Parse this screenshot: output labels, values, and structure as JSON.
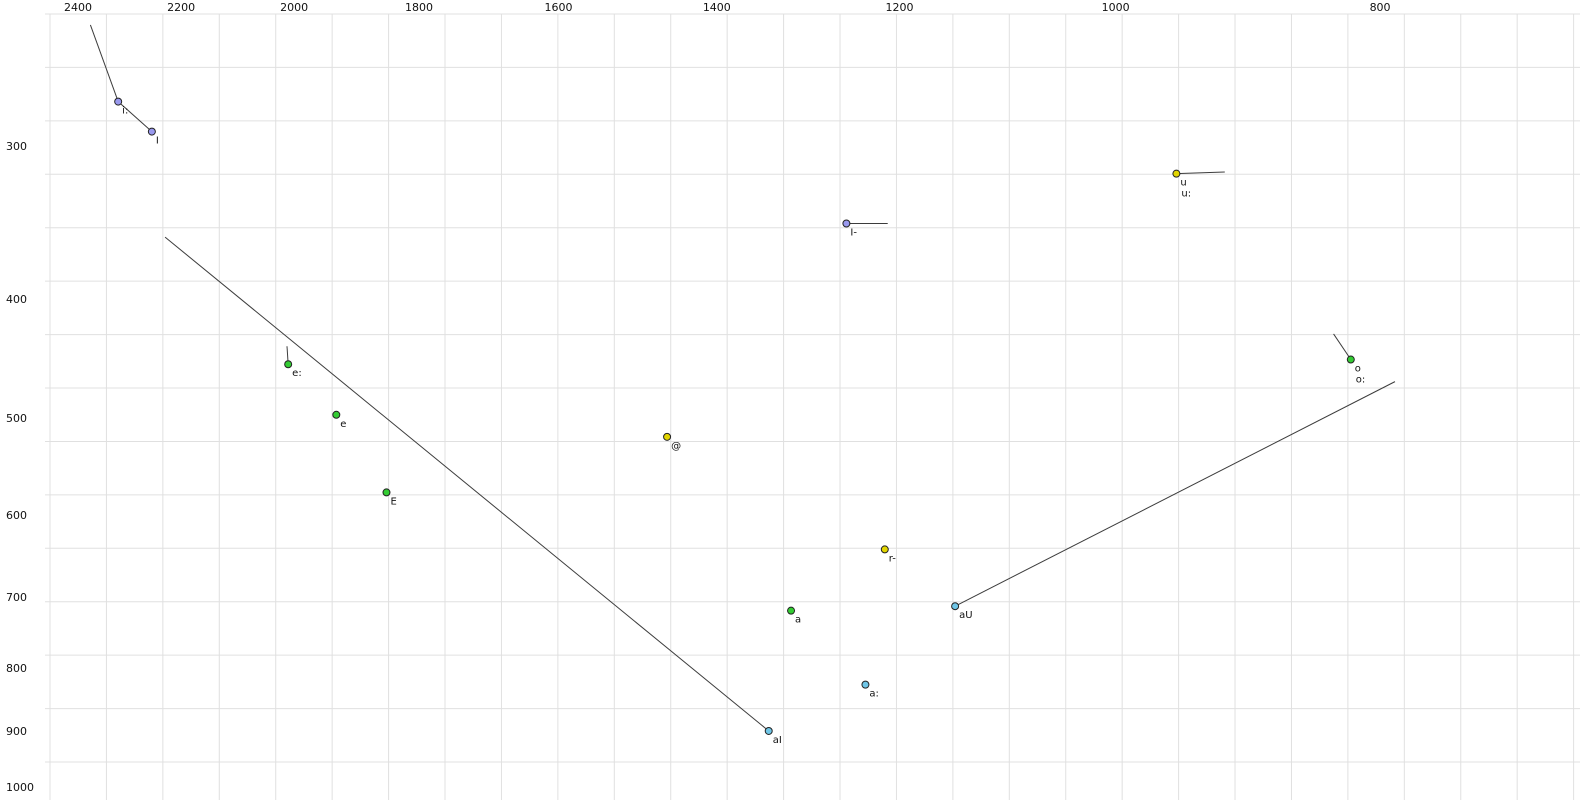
{
  "chart_data": {
    "type": "scatter",
    "title": "",
    "xlabel": "",
    "ylabel": "",
    "description": "vowel-formant-plot-f2-by-f1",
    "x_axis": {
      "scale": "log",
      "reversed": true,
      "ticks": [
        2400,
        2200,
        2000,
        1800,
        1600,
        1400,
        1200,
        1000,
        800
      ]
    },
    "y_axis": {
      "scale": "log",
      "reversed": true,
      "ticks": [
        300,
        400,
        500,
        600,
        700,
        800,
        900,
        1000
      ]
    },
    "points": [
      {
        "label": "i:",
        "f2": 2320,
        "f1": 276,
        "color": "#9999ee"
      },
      {
        "label": "I",
        "f2": 2255,
        "f1": 292,
        "color": "#9999ee"
      },
      {
        "label": "u",
        "label2": "u:",
        "f2": 950,
        "f1": 316,
        "color": "#e2d500"
      },
      {
        "label": "I-",
        "f2": 1255,
        "f1": 347,
        "color": "#9999ee"
      },
      {
        "label": "o",
        "label2": "o:",
        "f2": 820,
        "f1": 448,
        "color": "#33cc33"
      },
      {
        "label": "e:",
        "f2": 2010,
        "f1": 452,
        "color": "#33cc33"
      },
      {
        "label": "e",
        "f2": 1930,
        "f1": 497,
        "color": "#33cc33"
      },
      {
        "label": "@",
        "f2": 1460,
        "f1": 518,
        "color": "#e2d500"
      },
      {
        "label": "E",
        "f2": 1850,
        "f1": 575,
        "color": "#33cc33"
      },
      {
        "label": "r-",
        "f2": 1215,
        "f1": 640,
        "color": "#e2d500"
      },
      {
        "label": "a",
        "f2": 1315,
        "f1": 718,
        "color": "#33cc33"
      },
      {
        "label": "aU",
        "f2": 1145,
        "f1": 712,
        "color": "#6fc6e7"
      },
      {
        "label": "a:",
        "f2": 1235,
        "f1": 825,
        "color": "#6fc6e7"
      },
      {
        "label": "aI",
        "f2": 1340,
        "f1": 900,
        "color": "#6fc6e7"
      }
    ],
    "trajectories": [
      {
        "name": "i:-onglide",
        "from": {
          "f2": 2375,
          "f1": 239
        },
        "to": {
          "f2": 2320,
          "f1": 276
        }
      },
      {
        "name": "i:-to-I",
        "from": {
          "f2": 2320,
          "f1": 276
        },
        "to": {
          "f2": 2255,
          "f1": 292
        }
      },
      {
        "name": "u-offglide",
        "from": {
          "f2": 950,
          "f1": 316
        },
        "to": {
          "f2": 912,
          "f1": 315
        }
      },
      {
        "name": "I--offglide",
        "from": {
          "f2": 1255,
          "f1": 347
        },
        "to": {
          "f2": 1212,
          "f1": 347
        }
      },
      {
        "name": "o-onglide",
        "from": {
          "f2": 832,
          "f1": 427
        },
        "to": {
          "f2": 820,
          "f1": 448
        }
      },
      {
        "name": "e:-onglide",
        "from": {
          "f2": 2012,
          "f1": 437
        },
        "to": {
          "f2": 2010,
          "f1": 452
        }
      },
      {
        "name": "aI-glide",
        "from": {
          "f2": 2230,
          "f1": 356
        },
        "to": {
          "f2": 1340,
          "f1": 900
        }
      },
      {
        "name": "aU-glide",
        "from": {
          "f2": 1145,
          "f1": 712
        },
        "to": {
          "f2": 790,
          "f1": 467
        }
      }
    ],
    "colors": {
      "background": "#ffffff",
      "grid": "#e0e0e0",
      "trajectory_line": "#3c3c3c",
      "point_outline": "#222222",
      "tick_text": "#111111",
      "point_label_text": "#111111"
    },
    "legend": "none",
    "grid": "on"
  }
}
